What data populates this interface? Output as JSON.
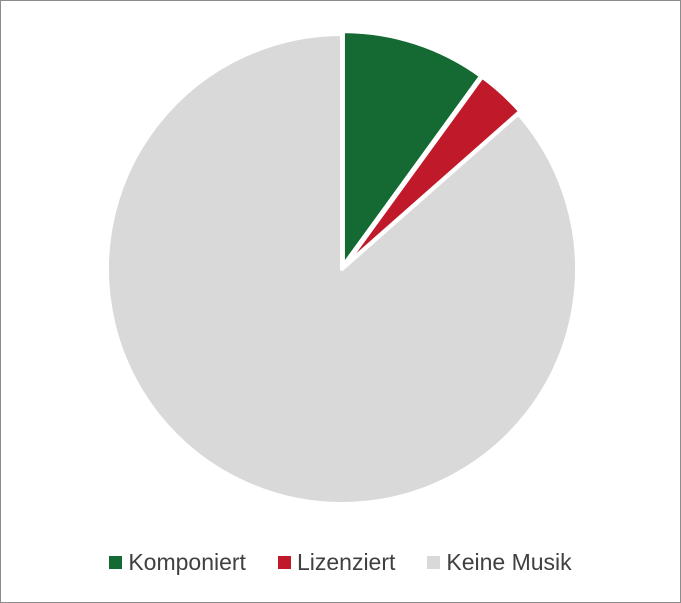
{
  "chart_data": {
    "type": "pie",
    "categories": [
      "Komponiert",
      "Lizenziert",
      "Keine Musik"
    ],
    "values": [
      10,
      3.5,
      86.5
    ],
    "colors": [
      "#146a32",
      "#c0192a",
      "#d9d9d9"
    ],
    "start_angle_deg": 0,
    "direction": "clockwise",
    "legend_position": "bottom"
  }
}
